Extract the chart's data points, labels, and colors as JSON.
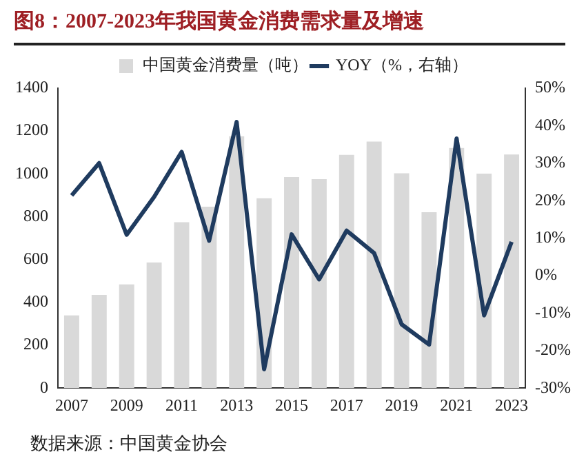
{
  "chart_data": {
    "type": "bar",
    "title": "图8：2007-2023年我国黄金消费需求量及增速",
    "categories": [
      "2007",
      null,
      "2009",
      null,
      "2011",
      null,
      "2013",
      null,
      "2015",
      null,
      "2017",
      null,
      "2019",
      null,
      "2021",
      null,
      "2023"
    ],
    "series": [
      {
        "name": "中国黄金消费量（吨）",
        "color": "#d9d9d9",
        "values": [
          339,
          435,
          484,
          586,
          774,
          847,
          1176,
          886,
          985,
          975,
          1089,
          1151,
          1003,
          821,
          1121,
          1001,
          1090
        ]
      },
      {
        "name": "YOY（%，右轴）",
        "type": "line",
        "axis": "y2",
        "color": "#1f3b5f",
        "values": [
          21.4,
          30,
          10.9,
          21,
          33,
          9.3,
          41,
          -25,
          11,
          -1,
          12,
          6,
          -13,
          -18.4,
          36.6,
          -10.6,
          9
        ]
      }
    ],
    "ylim": [
      0,
      1400
    ],
    "yticks": [
      0,
      200,
      400,
      600,
      800,
      1000,
      1200,
      1400
    ],
    "y2lim": [
      -30,
      50
    ],
    "y2ticks": [
      {
        "value": -30,
        "label": "-30%"
      },
      {
        "value": -20,
        "label": "-20%"
      },
      {
        "value": -10,
        "label": "-10%"
      },
      {
        "value": 0,
        "label": "0%"
      },
      {
        "value": 10,
        "label": "10%"
      },
      {
        "value": 20,
        "label": "20%"
      },
      {
        "value": 30,
        "label": "30%"
      },
      {
        "value": 40,
        "label": "40%"
      },
      {
        "value": 50,
        "label": "50%"
      }
    ],
    "legend": "top",
    "marker": "none",
    "line_style": "solid",
    "annotations": [
      "数据来源：中国黄金协会"
    ]
  }
}
